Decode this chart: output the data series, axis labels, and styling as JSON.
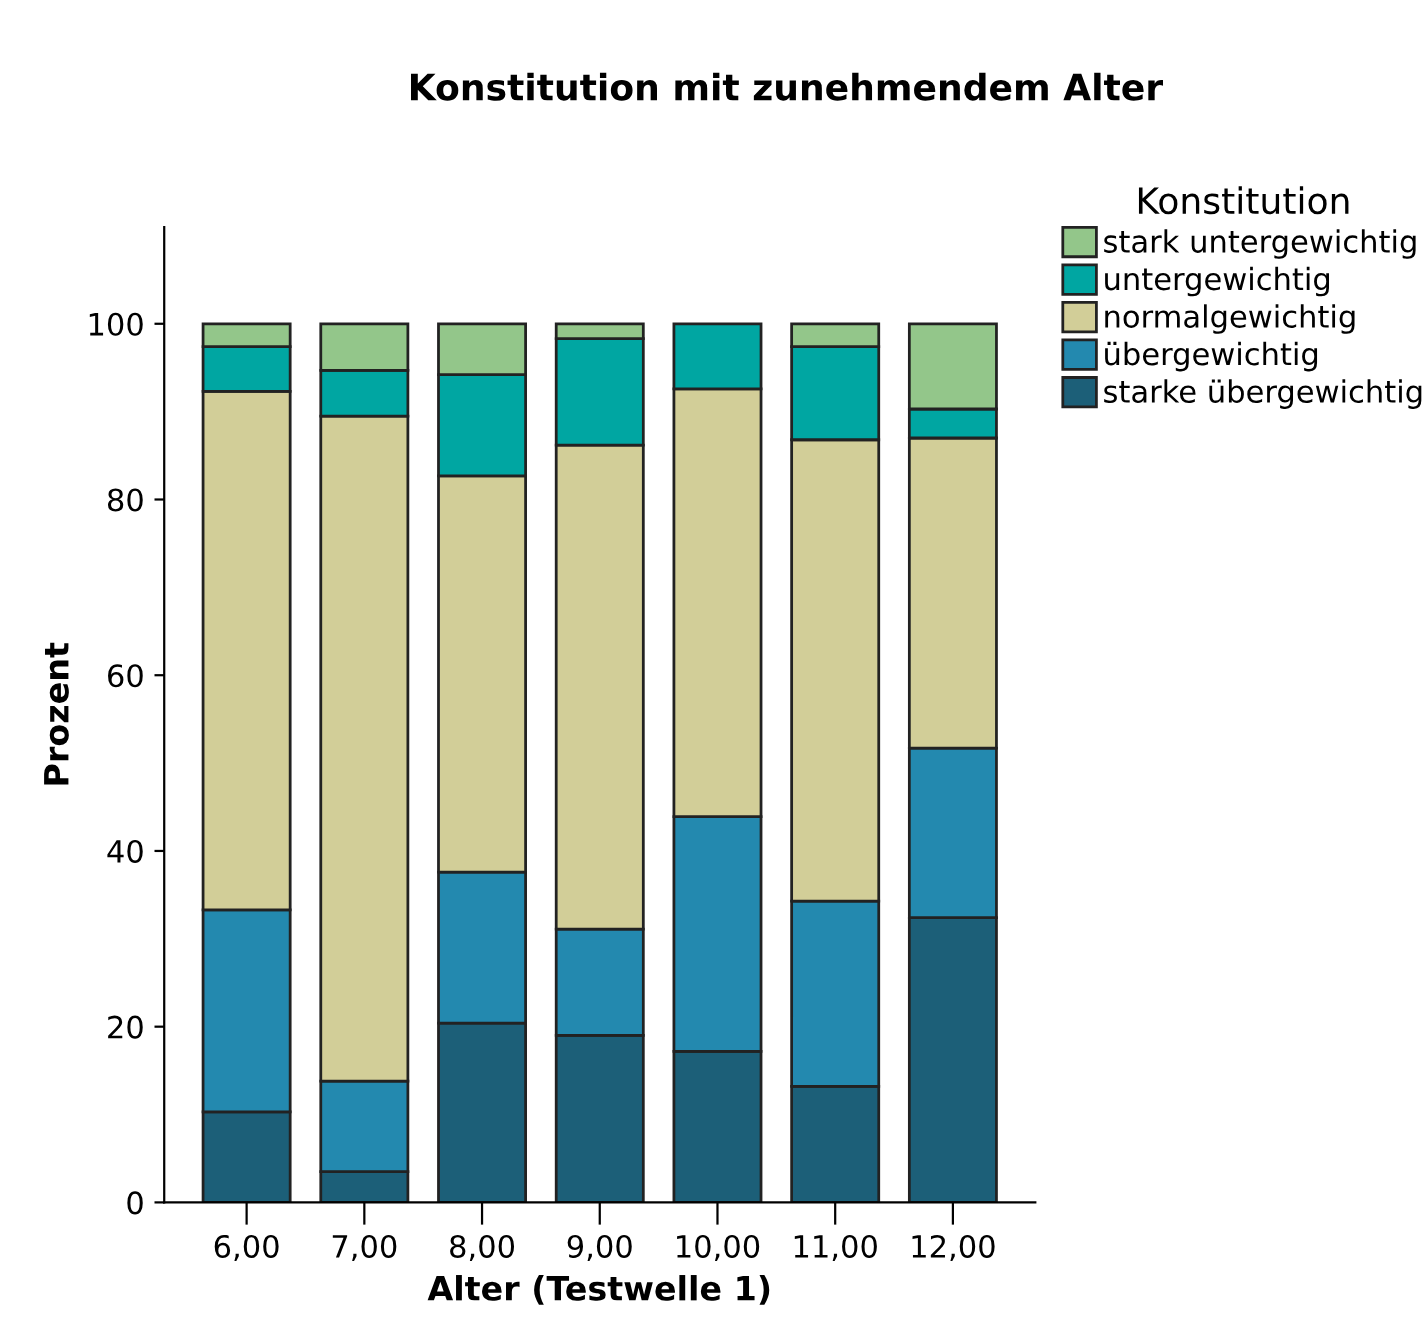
{
  "chart_data": {
    "type": "bar",
    "title": "Konstitution mit zunehmendem Alter",
    "xlabel": "Alter (Testwelle 1)",
    "ylabel": "Prozent",
    "legend_title": "Konstitution",
    "categories": [
      "6,00",
      "7,00",
      "8,00",
      "9,00",
      "10,00",
      "11,00",
      "12,00"
    ],
    "stacked": true,
    "ylim": [
      0,
      111
    ],
    "yticks": [
      0,
      20,
      40,
      60,
      80,
      100
    ],
    "grid": false,
    "legend": "top right",
    "series": [
      {
        "name": "starke übergewichtig",
        "color": "#1c5f78",
        "values": [
          10.3,
          3.5,
          20.4,
          19.0,
          17.2,
          13.2,
          32.4
        ]
      },
      {
        "name": "übergewichtig",
        "color": "#2389af",
        "values": [
          23.0,
          10.3,
          17.2,
          12.1,
          26.7,
          21.1,
          19.3
        ]
      },
      {
        "name": "normalgewichtig",
        "color": "#d2ce98",
        "values": [
          59.0,
          75.7,
          45.1,
          55.1,
          48.7,
          52.5,
          35.3
        ]
      },
      {
        "name": "untergewichtig",
        "color": "#00a6a2",
        "values": [
          5.1,
          5.2,
          11.5,
          12.1,
          7.4,
          10.6,
          3.3
        ]
      },
      {
        "name": "stark untergewichtig",
        "color": "#93c68a",
        "values": [
          2.6,
          5.3,
          5.8,
          1.7,
          null,
          2.6,
          9.7
        ]
      }
    ]
  }
}
